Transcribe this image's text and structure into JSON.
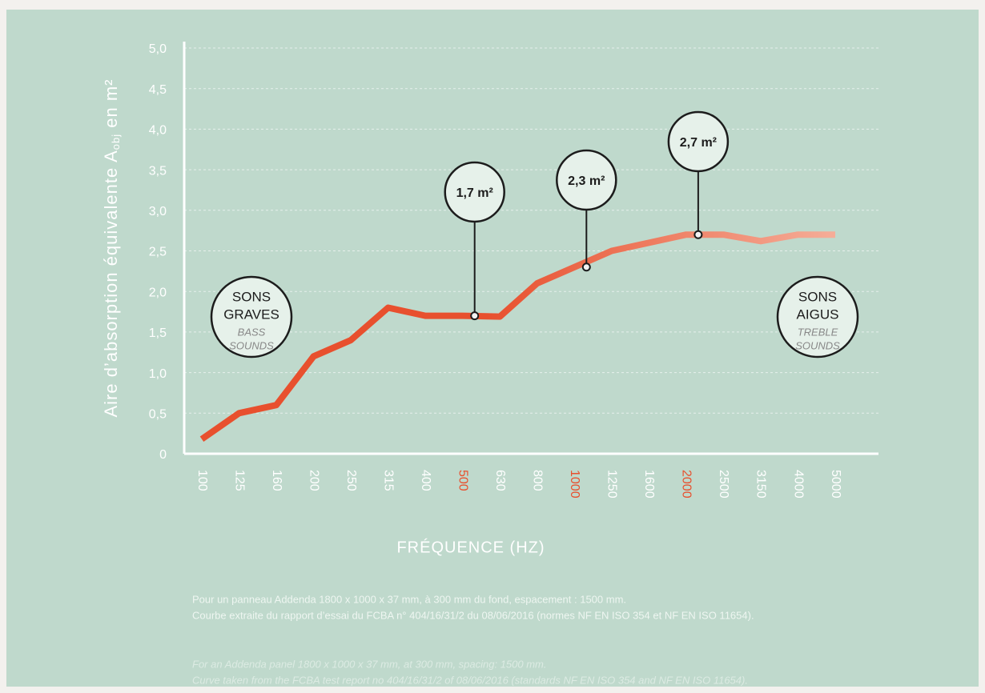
{
  "chart_data": {
    "type": "line",
    "y_label": "Aire d’absorption équivalente A",
    "y_label_sub": "obj",
    "y_label_end": " en m²",
    "x_label": "FRÉQUENCE (HZ)",
    "categories": [
      "100",
      "125",
      "160",
      "200",
      "250",
      "315",
      "400",
      "500",
      "630",
      "800",
      "1000",
      "1250",
      "1600",
      "2000",
      "2500",
      "3150",
      "4000",
      "5000"
    ],
    "series": [
      {
        "color": "#e8502e",
        "values": [
          0.18,
          0.5,
          0.6,
          1.2,
          1.4,
          1.8,
          1.7,
          1.7,
          1.69,
          2.1,
          2.3,
          2.5,
          2.6,
          2.7,
          2.7,
          2.62,
          2.7,
          2.7
        ]
      }
    ],
    "end_color": "#f5ad98",
    "ylim": [
      0,
      5
    ],
    "yticks": [
      0,
      {
        "value": 0.5,
        "label": "0,5"
      },
      {
        "value": 1,
        "label": "1,0"
      },
      {
        "value": 1.5,
        "label": "1,5"
      },
      {
        "value": 2,
        "label": "2,0"
      },
      {
        "value": 2.5,
        "label": "2,5"
      },
      {
        "value": 3,
        "label": "3,0"
      },
      {
        "value": 3.5,
        "label": "3,5"
      },
      {
        "value": 4,
        "label": "4,0"
      },
      {
        "value": 4.5,
        "label": "4,5"
      },
      {
        "value": 5,
        "label": "5,0"
      }
    ],
    "grid": true,
    "annotations": [
      {
        "category": "500",
        "value": 1.7,
        "label": "1,7 m²"
      },
      {
        "category": "1000",
        "value": 2.3,
        "label": "2,3 m²"
      },
      {
        "category": "2000",
        "value": 2.7,
        "label": "2,7 m²"
      }
    ],
    "left_badge": {
      "title": [
        "SONS",
        "GRAVES"
      ],
      "subtitle": [
        "BASS",
        "SOUNDS"
      ]
    },
    "right_badge": {
      "title": [
        "SONS",
        "AIGUS"
      ],
      "subtitle": [
        "TREBLE",
        "SOUNDS"
      ]
    },
    "notes_fr": [
      "Pour un panneau Addenda  1800 x 1000 x 37 mm, à 300 mm du fond, espacement : 1500 mm.",
      "Courbe extraite du rapport d’essai du FCBA n° 404/16/31/2 du 08/06/2016 (normes NF EN ISO 354 et NF EN ISO 11654)."
    ],
    "notes_en": [
      "For an Addenda panel 1800 x 1000 x 37 mm, at 300 mm, spacing: 1500 mm.",
      "Curve taken from the FCBA test report no 404/16/31/2 of 08/06/2016 (standards NF EN ISO 354 and NF EN ISO 11654)."
    ]
  }
}
